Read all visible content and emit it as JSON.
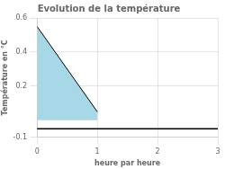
{
  "chart_data": {
    "type": "line",
    "title": "Evolution de la température",
    "xlabel": "heure par heure",
    "ylabel": "Température en °C",
    "xlim": [
      0,
      3
    ],
    "ylim": [
      -0.1,
      0.6
    ],
    "xticks": [
      0,
      1,
      2,
      3
    ],
    "yticks": [
      -0.1,
      0.2,
      0.4,
      0.6
    ],
    "grid": true,
    "series": [
      {
        "type": "area",
        "x": [
          0,
          1,
          1,
          0
        ],
        "values": [
          0.55,
          0.05,
          0.0,
          0.0
        ],
        "color": "#a8d8e8"
      },
      {
        "type": "line",
        "x": [
          0,
          1
        ],
        "values": [
          0.55,
          0.05
        ],
        "color": "#000000"
      }
    ],
    "hlines": [
      {
        "value": -0.05,
        "color": "#000000"
      }
    ]
  }
}
